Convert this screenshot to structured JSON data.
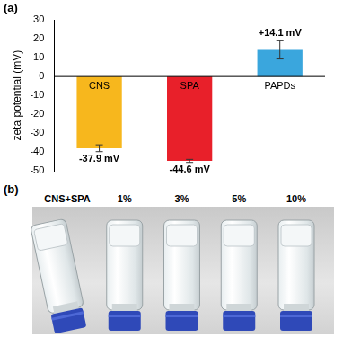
{
  "chart_data": {
    "type": "bar",
    "title": "(a)",
    "y_label": "zeta potential (mV)",
    "categories": [
      "CNS",
      "SPA",
      "PAPDs"
    ],
    "values": [
      -37.9,
      -44.6,
      14.1
    ],
    "value_labels": [
      "-37.9 mV",
      "-44.6 mV",
      "+14.1 mV"
    ],
    "errors": [
      1.8,
      0.8,
      4.8
    ],
    "colors": [
      "#f7b71d",
      "#e8202a",
      "#3aa6dd"
    ],
    "ylim": [
      -50,
      30
    ],
    "yticks": [
      -50,
      -40,
      -30,
      -20,
      -10,
      0,
      10,
      20,
      30
    ],
    "grid": false,
    "data_labels": true,
    "tick_labels": "y"
  },
  "panel_b": {
    "label": "(b)",
    "vial_labels": [
      "CNS+SPA",
      "1%",
      "3%",
      "5%",
      "10%"
    ]
  }
}
